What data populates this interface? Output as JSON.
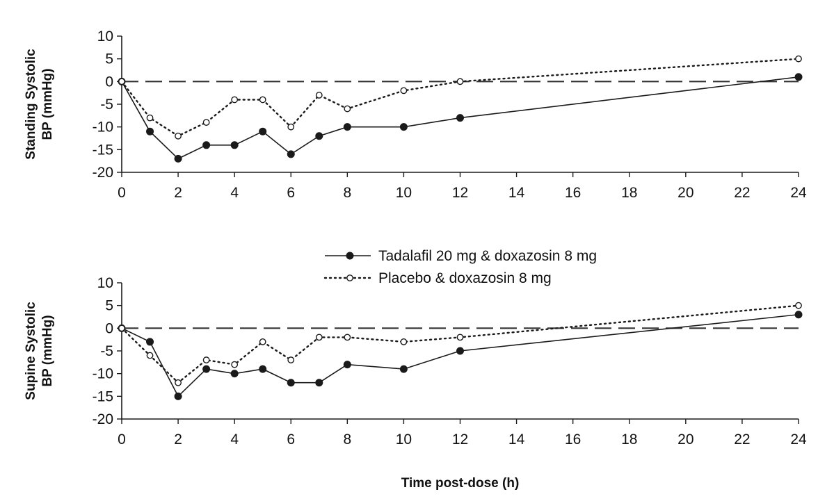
{
  "chart_data": [
    {
      "type": "line",
      "ylabel_lines": [
        "Standing Systolic",
        "BP (mmHg)"
      ],
      "xlabel": "",
      "xlim": [
        0,
        24
      ],
      "ylim": [
        -20,
        10
      ],
      "x_ticks": [
        "0",
        "2",
        "4",
        "6",
        "8",
        "10",
        "12",
        "14",
        "16",
        "18",
        "20",
        "22",
        "24"
      ],
      "y_ticks": [
        "10",
        "5",
        "0",
        "-5",
        "-10",
        "-15",
        "-20"
      ],
      "reference_line": 0,
      "series": [
        {
          "name": "Tadalafil 20 mg & doxazosin 8 mg",
          "style": "solid-filled",
          "x": [
            0,
            1,
            2,
            3,
            4,
            5,
            6,
            7,
            8,
            10,
            12,
            24
          ],
          "y": [
            0,
            -11,
            -17,
            -14,
            -14,
            -11,
            -16,
            -12,
            -10,
            -10,
            -8,
            1
          ]
        },
        {
          "name": "Placebo & doxazosin 8 mg",
          "style": "dotted-open",
          "x": [
            0,
            1,
            2,
            3,
            4,
            5,
            6,
            7,
            8,
            10,
            12,
            24
          ],
          "y": [
            0,
            -8,
            -12,
            -9,
            -4,
            -4,
            -10,
            -3,
            -6,
            -2,
            0,
            5
          ]
        }
      ]
    },
    {
      "type": "line",
      "ylabel_lines": [
        "Supine Systolic",
        "BP (mmHg)"
      ],
      "xlabel": "Time post-dose (h)",
      "xlim": [
        0,
        24
      ],
      "ylim": [
        -20,
        10
      ],
      "x_ticks": [
        "0",
        "2",
        "4",
        "6",
        "8",
        "10",
        "12",
        "14",
        "16",
        "18",
        "20",
        "22",
        "24"
      ],
      "y_ticks": [
        "10",
        "5",
        "0",
        "-5",
        "-10",
        "-15",
        "-20"
      ],
      "reference_line": 0,
      "series": [
        {
          "name": "Tadalafil 20 mg & doxazosin 8 mg",
          "style": "solid-filled",
          "x": [
            0,
            1,
            2,
            3,
            4,
            5,
            6,
            7,
            8,
            10,
            12,
            24
          ],
          "y": [
            0,
            -3,
            -15,
            -9,
            -10,
            -9,
            -12,
            -12,
            -8,
            -9,
            -5,
            3
          ]
        },
        {
          "name": "Placebo & doxazosin 8 mg",
          "style": "dotted-open",
          "x": [
            0,
            1,
            2,
            3,
            4,
            5,
            6,
            7,
            8,
            10,
            12,
            24
          ],
          "y": [
            0,
            -6,
            -12,
            -7,
            -8,
            -3,
            -7,
            -2,
            -2,
            -3,
            -2,
            5
          ]
        }
      ]
    }
  ],
  "legend": {
    "placement": "center-between-panels",
    "entries": [
      {
        "label": "Tadalafil 20 mg & doxazosin 8 mg",
        "style": "solid-filled"
      },
      {
        "label": "Placebo & doxazosin 8 mg",
        "style": "dotted-open"
      }
    ]
  },
  "colors": {
    "ink": "#1a1a1a",
    "reference": "#333333",
    "background": "#ffffff"
  }
}
